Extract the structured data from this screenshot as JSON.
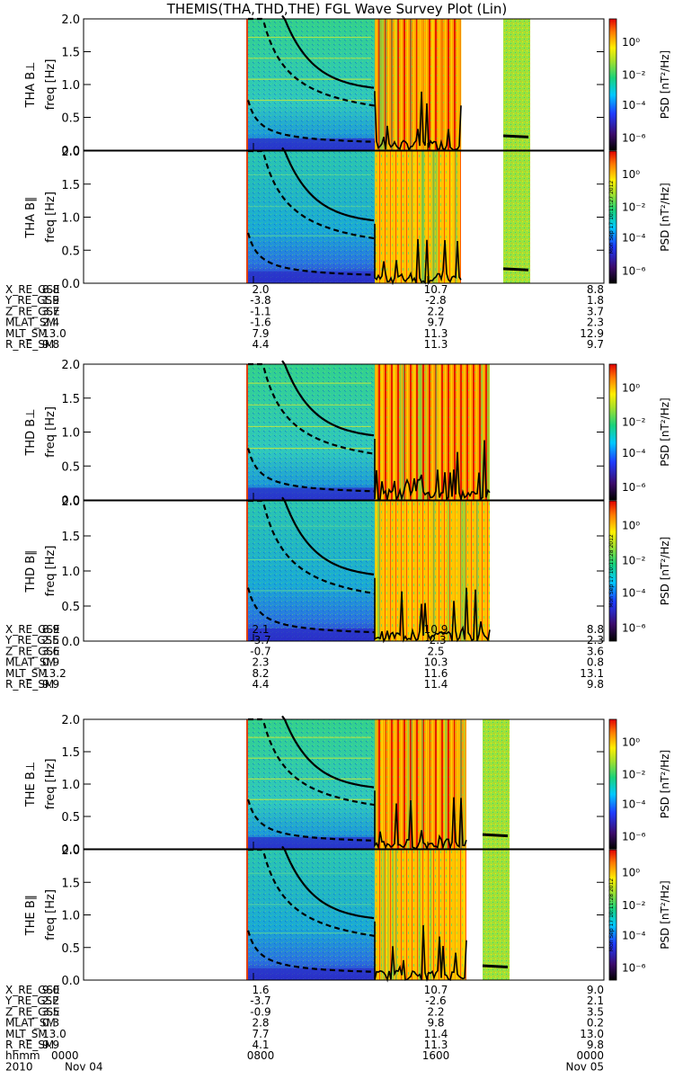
{
  "title": "THEMIS(THA,THD,THE) FGL Wave Survey Plot (Lin)",
  "colorbar": {
    "label": "PSD [nT²/Hz]",
    "ticks": [
      "10⁰",
      "10⁻²",
      "10⁻⁴",
      "10⁻⁶"
    ],
    "stamps": [
      "Mon Sep 17 10:11:27 2012",
      "Mon Sep 17 10:11:28 2012",
      "Mon Sep 17 10:11:28 2012"
    ]
  },
  "chart_data": {
    "type": "heatmap",
    "y_axis_label": "freq [Hz]",
    "y_range": [
      0.0,
      2.0
    ],
    "y_ticks": [
      "2.0",
      "1.5",
      "1.0",
      "0.5",
      "0.0"
    ],
    "x_ticks": [
      "0000",
      "0800",
      "1600",
      "0000"
    ],
    "time_row_label": "hhmm",
    "date_row": {
      "label": "2010",
      "start": "Nov 04",
      "end": "Nov 05"
    },
    "probes": [
      {
        "panels": [
          "THA B⊥",
          "THA B∥"
        ],
        "ephemeris": [
          {
            "name": "X_RE_GSE",
            "values": [
              "8.8",
              "2.0",
              "10.7",
              "8.8"
            ]
          },
          {
            "name": "Y_RE_GSE",
            "values": [
              "1.9",
              "-3.8",
              "-2.8",
              "1.8"
            ]
          },
          {
            "name": "Z_RE_GSE",
            "values": [
              "3.7",
              "-1.1",
              "2.2",
              "3.7"
            ]
          },
          {
            "name": "MLAT_SM",
            "values": [
              "2.4",
              "-1.6",
              "9.7",
              "2.3"
            ]
          },
          {
            "name": "MLT_SM",
            "values": [
              "13.0",
              "7.9",
              "11.3",
              "12.9"
            ]
          },
          {
            "name": "R_RE_SM",
            "values": [
              "9.8",
              "4.4",
              "11.3",
              "9.7"
            ]
          }
        ]
      },
      {
        "panels": [
          "THD B⊥",
          "THD B∥"
        ],
        "ephemeris": [
          {
            "name": "X_RE_GSE",
            "values": [
              "8.9",
              "2.1",
              "10.9",
              "8.8"
            ]
          },
          {
            "name": "Y_RE_GSE",
            "values": [
              "2.5",
              "-3.7",
              "-2.3",
              "2.3"
            ]
          },
          {
            "name": "Z_RE_GSE",
            "values": [
              "3.6",
              "-0.7",
              "2.5",
              "3.6"
            ]
          },
          {
            "name": "MLAT_SM",
            "values": [
              "0.9",
              "2.3",
              "10.3",
              "0.8"
            ]
          },
          {
            "name": "MLT_SM",
            "values": [
              "13.2",
              "8.2",
              "11.6",
              "13.1"
            ]
          },
          {
            "name": "R_RE_SM",
            "values": [
              "9.9",
              "4.4",
              "11.4",
              "9.8"
            ]
          }
        ]
      },
      {
        "panels": [
          "THE B⊥",
          "THE B∥"
        ],
        "ephemeris": [
          {
            "name": "X_RE_GSE",
            "values": [
              "9.0",
              "1.6",
              "10.7",
              "9.0"
            ]
          },
          {
            "name": "Y_RE_GSE",
            "values": [
              "2.2",
              "-3.7",
              "-2.6",
              "2.1"
            ]
          },
          {
            "name": "Z_RE_GSE",
            "values": [
              "3.5",
              "-0.9",
              "2.2",
              "3.5"
            ]
          },
          {
            "name": "MLAT_SM",
            "values": [
              "0.3",
              "2.8",
              "9.8",
              "0.2"
            ]
          },
          {
            "name": "MLT_SM",
            "values": [
              "13.0",
              "7.7",
              "11.4",
              "13.0"
            ]
          },
          {
            "name": "R_RE_SM",
            "values": [
              "9.9",
              "4.1",
              "11.3",
              "9.8"
            ]
          }
        ]
      }
    ]
  }
}
